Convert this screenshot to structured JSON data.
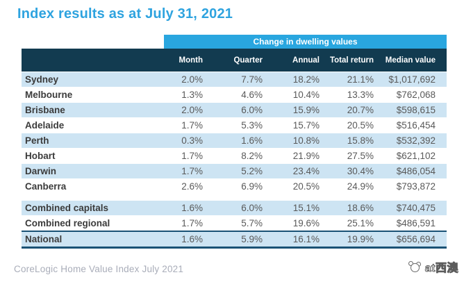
{
  "title": "Index results as at July 31, 2021",
  "banner": "Change in dwelling values",
  "footer": "CoreLogic Home Value Index July 2021",
  "watermark": {
    "text": "at西澳",
    "icon": "koala-logo-icon"
  },
  "colors": {
    "title_blue": "#2ea3df",
    "banner_blue": "#29a6df",
    "header_navy": "#123b50",
    "row_shade_blue": "#cde4f3",
    "national_border": "#1a5275",
    "value_gray": "#595959",
    "label_dark": "#3b3b3b",
    "footer_gray": "#a9adb9"
  },
  "chart_data": {
    "type": "table",
    "title": "Index results as at July 31, 2021",
    "group_header": "Change in dwelling values",
    "columns": [
      "",
      "Month",
      "Quarter",
      "Annual",
      "Total return",
      "Median value"
    ],
    "rows": [
      {
        "label": "Sydney",
        "month": "2.0%",
        "quarter": "7.7%",
        "annual": "18.2%",
        "total_return": "21.1%",
        "median_value": "$1,017,692",
        "shade": true
      },
      {
        "label": "Melbourne",
        "month": "1.3%",
        "quarter": "4.6%",
        "annual": "10.4%",
        "total_return": "13.3%",
        "median_value": "$762,068",
        "shade": false
      },
      {
        "label": "Brisbane",
        "month": "2.0%",
        "quarter": "6.0%",
        "annual": "15.9%",
        "total_return": "20.7%",
        "median_value": "$598,615",
        "shade": true
      },
      {
        "label": "Adelaide",
        "month": "1.7%",
        "quarter": "5.3%",
        "annual": "15.7%",
        "total_return": "20.5%",
        "median_value": "$516,454",
        "shade": false
      },
      {
        "label": "Perth",
        "month": "0.3%",
        "quarter": "1.6%",
        "annual": "10.8%",
        "total_return": "15.8%",
        "median_value": "$532,392",
        "shade": true
      },
      {
        "label": "Hobart",
        "month": "1.7%",
        "quarter": "8.2%",
        "annual": "21.9%",
        "total_return": "27.5%",
        "median_value": "$621,102",
        "shade": false
      },
      {
        "label": "Darwin",
        "month": "1.7%",
        "quarter": "5.2%",
        "annual": "23.4%",
        "total_return": "30.4%",
        "median_value": "$486,054",
        "shade": true
      },
      {
        "label": "Canberra",
        "month": "2.6%",
        "quarter": "6.9%",
        "annual": "20.5%",
        "total_return": "24.9%",
        "median_value": "$793,872",
        "shade": false
      },
      {
        "label": "Combined capitals",
        "month": "1.6%",
        "quarter": "6.0%",
        "annual": "15.1%",
        "total_return": "18.6%",
        "median_value": "$740,475",
        "shade": true,
        "gap_before": true
      },
      {
        "label": "Combined regional",
        "month": "1.7%",
        "quarter": "5.7%",
        "annual": "19.6%",
        "total_return": "25.1%",
        "median_value": "$486,591",
        "shade": false
      },
      {
        "label": "National",
        "month": "1.6%",
        "quarter": "5.9%",
        "annual": "16.1%",
        "total_return": "19.9%",
        "median_value": "$656,694",
        "shade": true,
        "national": true
      }
    ]
  }
}
